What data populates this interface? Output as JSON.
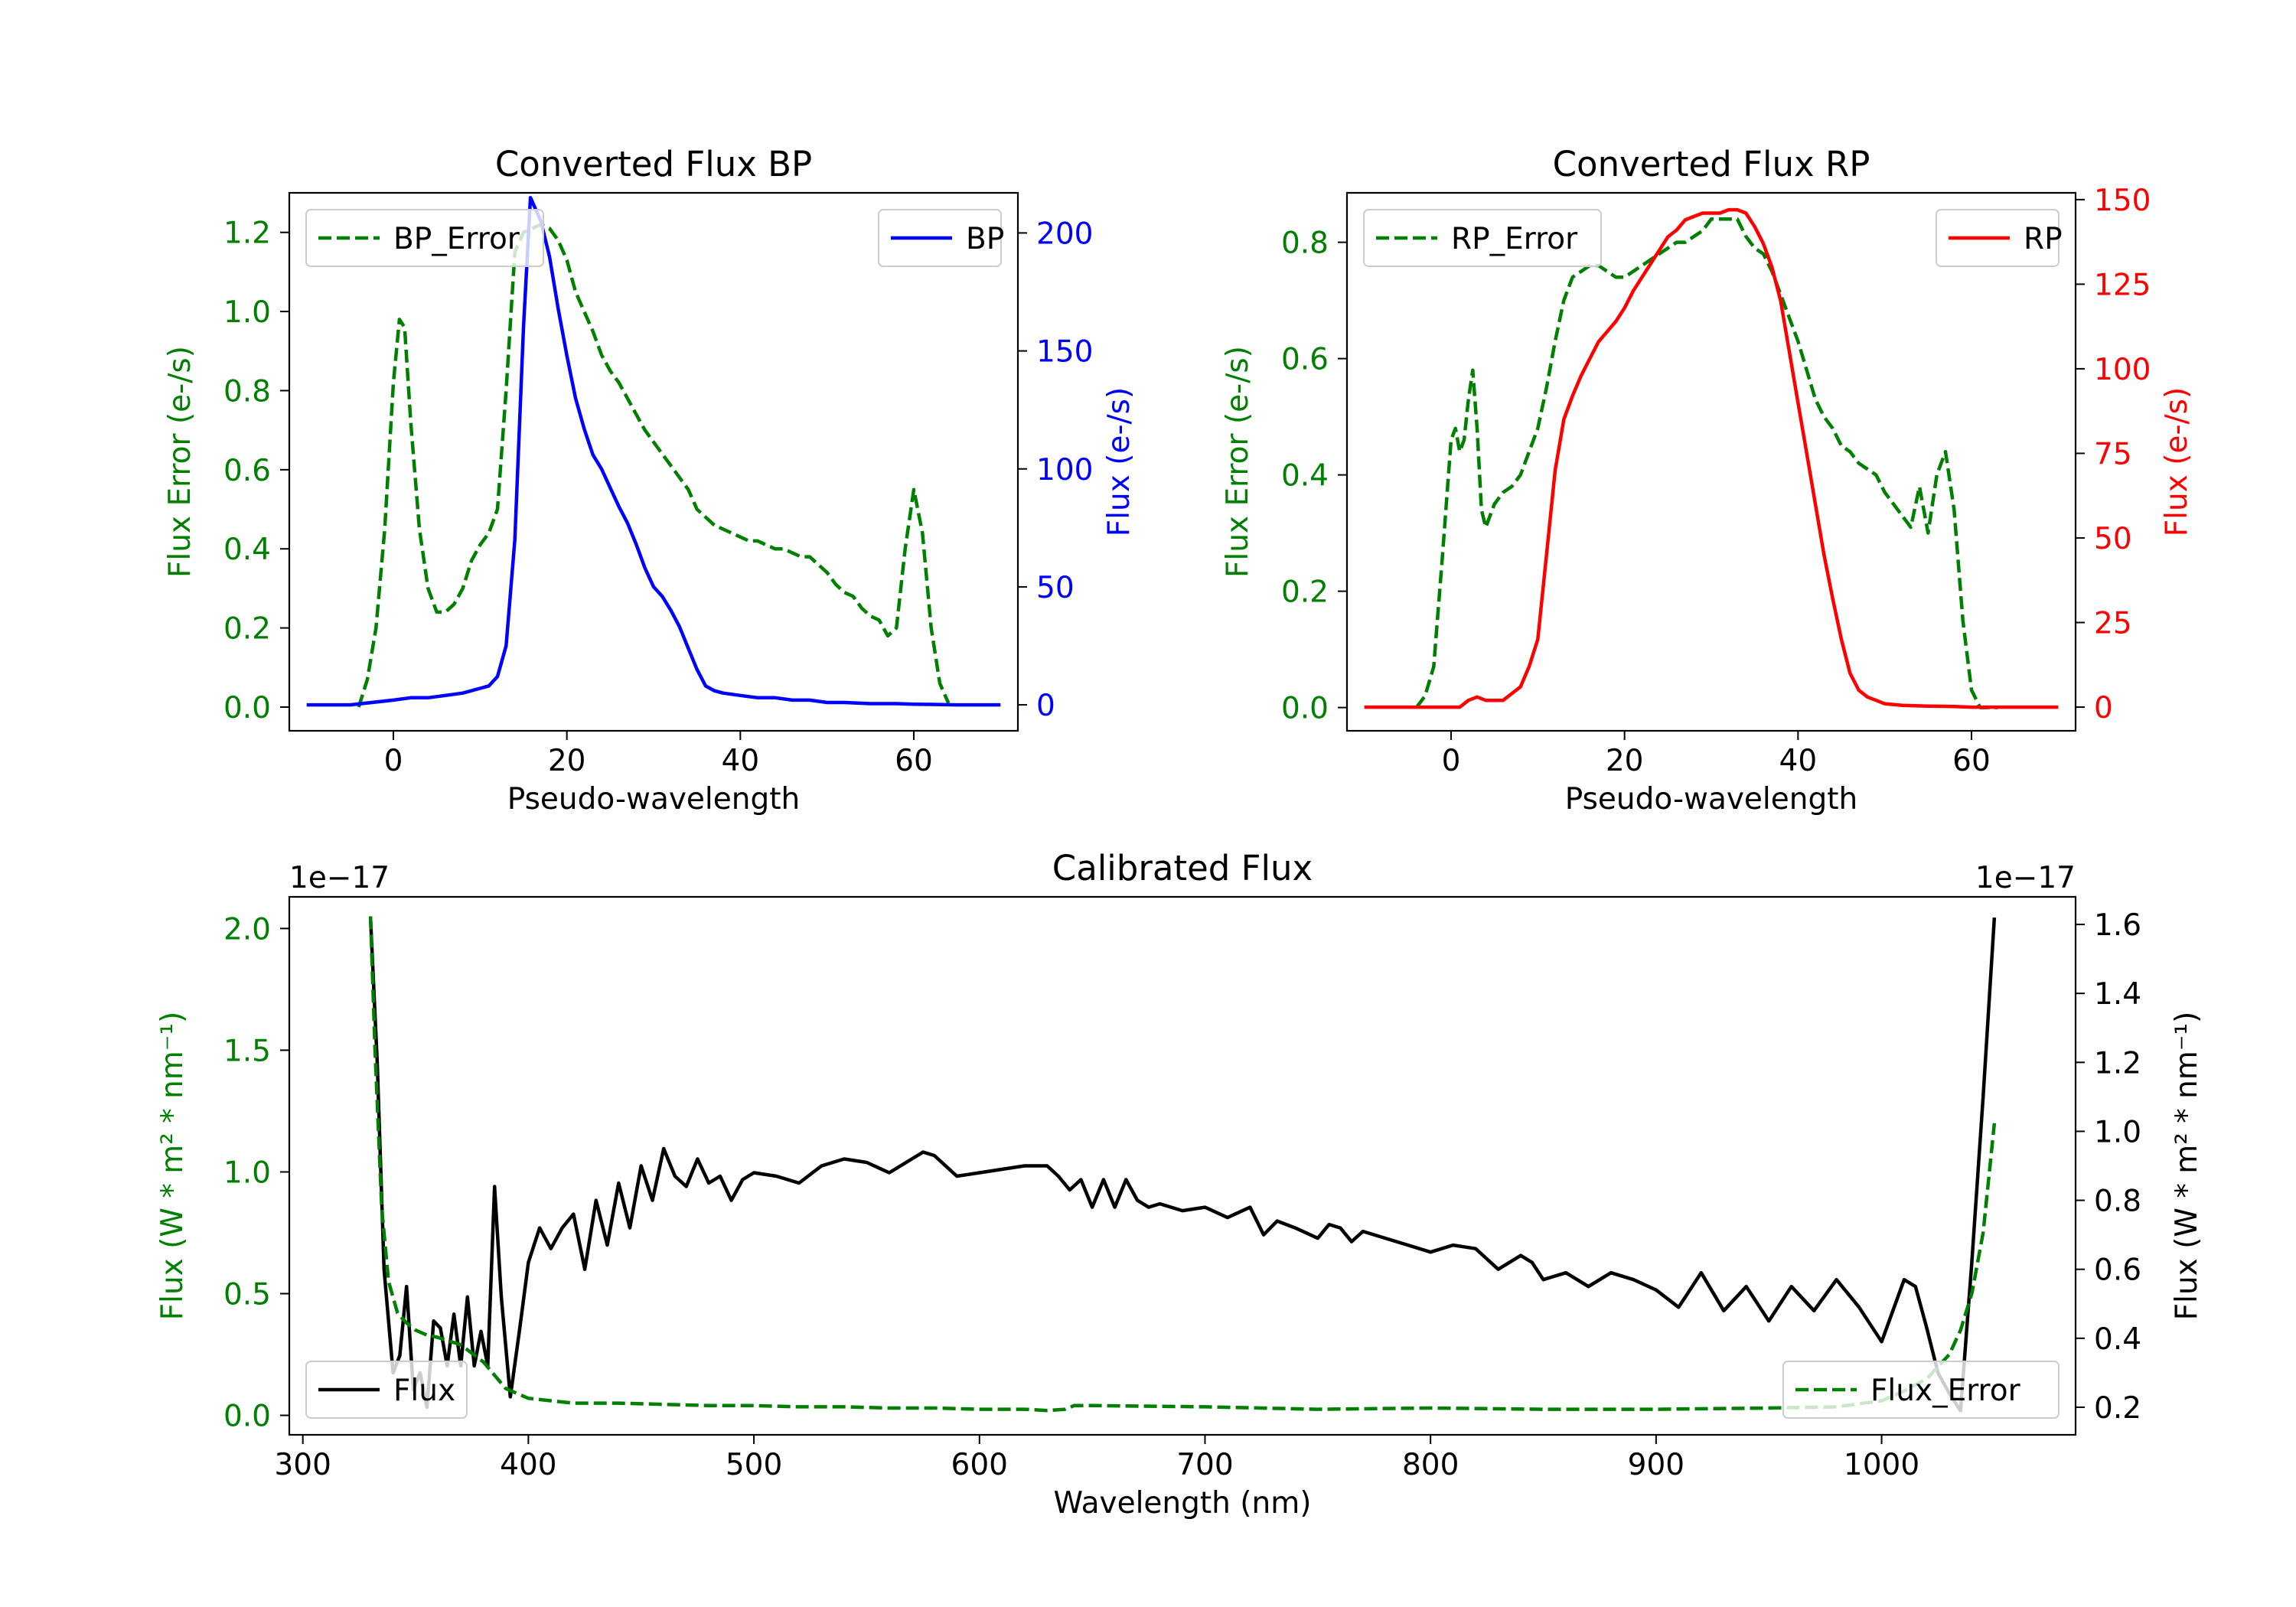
{
  "chart_data": [
    {
      "id": "bp",
      "type": "line",
      "title": "Converted Flux BP",
      "xlabel": "Pseudo-wavelength",
      "xlim": [
        -12,
        72
      ],
      "xticks": [
        0,
        20,
        40,
        60
      ],
      "left_axis": {
        "label": "Flux Error (e-/s)",
        "color": "#008000",
        "lim": [
          -0.06,
          1.3
        ],
        "ticks": [
          "0.0",
          "0.2",
          "0.4",
          "0.6",
          "0.8",
          "1.0",
          "1.2"
        ]
      },
      "right_axis": {
        "label": "Flux (e-/s)",
        "color": "#0000ff",
        "lim": [
          -11,
          217
        ],
        "ticks": [
          "0",
          "50",
          "100",
          "150",
          "200"
        ]
      },
      "series": [
        {
          "name": "BP_Error",
          "axis": "left",
          "color": "#008000",
          "dash": true,
          "x": [
            -4,
            -3,
            -2,
            -1,
            0,
            0.7,
            1.3,
            2,
            3,
            4,
            5,
            6,
            7,
            8,
            9,
            10,
            11,
            12,
            13,
            14,
            15,
            16,
            17,
            18,
            19,
            20,
            21,
            22,
            23,
            24,
            25,
            26,
            27,
            28,
            29,
            30,
            31,
            32,
            33,
            34,
            35,
            36,
            37,
            38,
            39,
            40,
            41,
            42,
            43,
            44,
            45,
            46,
            47,
            48,
            49,
            50,
            51,
            52,
            53,
            54,
            55,
            56,
            57,
            58,
            59,
            60,
            61,
            62,
            63,
            64
          ],
          "y": [
            0,
            0.07,
            0.2,
            0.45,
            0.82,
            0.98,
            0.96,
            0.72,
            0.45,
            0.3,
            0.24,
            0.24,
            0.26,
            0.3,
            0.37,
            0.41,
            0.44,
            0.5,
            0.8,
            1.15,
            1.2,
            1.21,
            1.22,
            1.21,
            1.18,
            1.13,
            1.05,
            1,
            0.95,
            0.89,
            0.85,
            0.82,
            0.78,
            0.74,
            0.7,
            0.67,
            0.64,
            0.61,
            0.58,
            0.55,
            0.5,
            0.48,
            0.46,
            0.45,
            0.44,
            0.43,
            0.42,
            0.42,
            0.41,
            0.4,
            0.4,
            0.39,
            0.38,
            0.38,
            0.36,
            0.34,
            0.31,
            0.29,
            0.28,
            0.25,
            0.23,
            0.22,
            0.18,
            0.2,
            0.4,
            0.55,
            0.44,
            0.2,
            0.06,
            0.01
          ]
        },
        {
          "name": "BP",
          "axis": "right",
          "color": "#0000ff",
          "dash": false,
          "x": [
            -10,
            -5,
            0,
            2,
            4,
            6,
            8,
            10,
            11,
            12,
            13,
            14,
            15,
            15.8,
            17,
            18,
            19,
            20,
            21,
            22,
            23,
            24,
            25,
            26,
            27,
            28,
            29,
            30,
            31,
            32,
            33,
            34,
            35,
            36,
            37,
            38,
            40,
            42,
            44,
            46,
            48,
            50,
            52,
            55,
            58,
            60,
            62,
            65,
            70
          ],
          "y": [
            0,
            0,
            2,
            3,
            3,
            4,
            5,
            7,
            8,
            12,
            25,
            70,
            160,
            215,
            205,
            190,
            168,
            148,
            130,
            117,
            106,
            100,
            92,
            84,
            77,
            68,
            58,
            50,
            46,
            40,
            33,
            24,
            15,
            8,
            6,
            5,
            4,
            3,
            3,
            2,
            2,
            1,
            1,
            0.5,
            0.5,
            0.3,
            0.2,
            0,
            0
          ]
        }
      ],
      "legend": [
        {
          "label": "BP_Error",
          "position": "upper-left"
        },
        {
          "label": "BP",
          "position": "upper-right"
        }
      ]
    },
    {
      "id": "rp",
      "type": "line",
      "title": "Converted Flux RP",
      "xlabel": "Pseudo-wavelength",
      "xlim": [
        -12,
        72
      ],
      "xticks": [
        0,
        20,
        40,
        60
      ],
      "left_axis": {
        "label": "Flux Error (e-/s)",
        "color": "#008000",
        "lim": [
          -0.04,
          0.885
        ],
        "ticks": [
          "0.0",
          "0.2",
          "0.4",
          "0.6",
          "0.8"
        ]
      },
      "right_axis": {
        "label": "Flux (e-/s)",
        "color": "#ff0000",
        "lim": [
          -7,
          152
        ],
        "ticks": [
          "0",
          "25",
          "50",
          "75",
          "100",
          "125",
          "150"
        ]
      },
      "series": [
        {
          "name": "RP_Error",
          "axis": "left",
          "color": "#008000",
          "dash": true,
          "x": [
            -4,
            -3,
            -2,
            -1,
            0,
            0.5,
            1,
            1.5,
            2,
            2.5,
            3,
            3.5,
            4,
            5,
            6,
            7,
            8,
            9,
            10,
            11,
            12,
            13,
            14,
            15,
            16,
            17,
            18,
            19,
            20,
            21,
            22,
            23,
            24,
            25,
            26,
            27,
            28,
            29,
            30,
            31,
            32,
            33,
            34,
            35,
            36,
            37,
            38,
            39,
            40,
            41,
            42,
            43,
            44,
            45,
            46,
            47,
            48,
            49,
            50,
            51,
            52,
            53,
            54,
            55,
            56,
            57,
            58,
            59,
            60,
            61,
            62,
            63
          ],
          "y": [
            0,
            0.02,
            0.07,
            0.26,
            0.46,
            0.48,
            0.44,
            0.46,
            0.53,
            0.58,
            0.48,
            0.34,
            0.31,
            0.35,
            0.37,
            0.38,
            0.4,
            0.44,
            0.48,
            0.55,
            0.63,
            0.7,
            0.74,
            0.75,
            0.76,
            0.76,
            0.75,
            0.74,
            0.74,
            0.75,
            0.76,
            0.77,
            0.78,
            0.79,
            0.8,
            0.8,
            0.81,
            0.82,
            0.84,
            0.84,
            0.84,
            0.84,
            0.81,
            0.79,
            0.78,
            0.75,
            0.71,
            0.67,
            0.63,
            0.58,
            0.53,
            0.5,
            0.48,
            0.45,
            0.44,
            0.42,
            0.41,
            0.4,
            0.37,
            0.35,
            0.33,
            0.31,
            0.38,
            0.3,
            0.4,
            0.44,
            0.34,
            0.15,
            0.03,
            0,
            0,
            0
          ]
        },
        {
          "name": "RP",
          "axis": "right",
          "color": "#ff0000",
          "dash": false,
          "x": [
            -10,
            -5,
            0,
            1,
            2,
            3,
            4,
            5,
            6,
            7,
            8,
            9,
            10,
            11,
            12,
            13,
            14,
            15,
            16,
            17,
            18,
            19,
            20,
            21,
            22,
            23,
            24,
            25,
            26,
            27,
            28,
            29,
            30,
            31,
            32,
            33,
            34,
            35,
            36,
            37,
            38,
            39,
            40,
            41,
            42,
            43,
            44,
            45,
            46,
            47,
            48,
            49,
            50,
            52,
            55,
            58,
            60,
            62,
            65,
            70
          ],
          "y": [
            0,
            0,
            0,
            0,
            2,
            3,
            2,
            2,
            2,
            4,
            6,
            12,
            20,
            45,
            70,
            85,
            92,
            98,
            103,
            108,
            111,
            114,
            118,
            123,
            127,
            131,
            135,
            139,
            141,
            144,
            145,
            146,
            146,
            146,
            147,
            147,
            146,
            142,
            137,
            130,
            120,
            105,
            90,
            75,
            60,
            45,
            32,
            20,
            10,
            5,
            3,
            2,
            1,
            0.5,
            0.3,
            0.2,
            0,
            0,
            0,
            0
          ]
        }
      ],
      "legend": [
        {
          "label": "RP_Error",
          "position": "upper-left"
        },
        {
          "label": "RP",
          "position": "upper-right"
        }
      ]
    },
    {
      "id": "cal",
      "type": "line",
      "title": "Calibrated Flux",
      "xlabel": "Wavelength (nm)",
      "xlim": [
        294,
        1086
      ],
      "xticks": [
        300,
        400,
        500,
        600,
        700,
        800,
        900,
        1000
      ],
      "left_axis": {
        "label": "Flux (W * m² * nm⁻¹)",
        "color": "#008000",
        "lim": [
          -0.08,
          2.13
        ],
        "ticks": [
          "0.0",
          "0.5",
          "1.0",
          "1.5",
          "2.0"
        ],
        "offset": "1e−17"
      },
      "right_axis": {
        "label": "Flux (W * m² * nm⁻¹)",
        "color": "#000000",
        "lim": [
          0.12,
          1.68
        ],
        "ticks": [
          "0.2",
          "0.4",
          "0.6",
          "0.8",
          "1.0",
          "1.2",
          "1.4",
          "1.6"
        ],
        "offset": "1e−17"
      },
      "series": [
        {
          "name": "Flux",
          "axis": "right",
          "color": "#000000",
          "dash": false,
          "x": [
            330,
            333,
            336,
            340,
            343,
            346,
            349,
            352,
            355,
            358,
            361,
            364,
            367,
            370,
            373,
            376,
            379,
            382,
            385,
            388,
            392,
            396,
            400,
            405,
            410,
            415,
            420,
            425,
            430,
            435,
            440,
            445,
            450,
            455,
            460,
            465,
            470,
            475,
            480,
            485,
            490,
            495,
            500,
            510,
            520,
            530,
            540,
            550,
            560,
            570,
            575,
            580,
            590,
            600,
            610,
            620,
            630,
            635,
            640,
            645,
            650,
            655,
            660,
            665,
            670,
            675,
            680,
            690,
            700,
            710,
            720,
            726,
            732,
            740,
            750,
            755,
            760,
            765,
            770,
            780,
            790,
            800,
            810,
            820,
            830,
            840,
            845,
            850,
            860,
            870,
            880,
            890,
            900,
            910,
            920,
            930,
            940,
            950,
            960,
            970,
            980,
            990,
            1000,
            1010,
            1015,
            1020,
            1025,
            1030,
            1035,
            1040,
            1045,
            1050
          ],
          "y": [
            1.62,
            1.2,
            0.6,
            0.3,
            0.35,
            0.55,
            0.25,
            0.3,
            0.2,
            0.45,
            0.43,
            0.32,
            0.47,
            0.32,
            0.52,
            0.32,
            0.42,
            0.32,
            0.84,
            0.52,
            0.23,
            0.42,
            0.62,
            0.72,
            0.66,
            0.72,
            0.76,
            0.6,
            0.8,
            0.67,
            0.85,
            0.72,
            0.9,
            0.8,
            0.95,
            0.87,
            0.84,
            0.92,
            0.85,
            0.87,
            0.8,
            0.86,
            0.88,
            0.87,
            0.85,
            0.9,
            0.92,
            0.91,
            0.88,
            0.92,
            0.94,
            0.93,
            0.87,
            0.88,
            0.89,
            0.9,
            0.9,
            0.87,
            0.83,
            0.86,
            0.78,
            0.86,
            0.78,
            0.86,
            0.8,
            0.78,
            0.79,
            0.77,
            0.78,
            0.75,
            0.78,
            0.7,
            0.74,
            0.72,
            0.69,
            0.73,
            0.72,
            0.68,
            0.71,
            0.69,
            0.67,
            0.65,
            0.67,
            0.66,
            0.6,
            0.64,
            0.62,
            0.57,
            0.59,
            0.55,
            0.59,
            0.57,
            0.54,
            0.49,
            0.59,
            0.48,
            0.55,
            0.45,
            0.55,
            0.48,
            0.57,
            0.49,
            0.39,
            0.57,
            0.55,
            0.43,
            0.3,
            0.24,
            0.19,
            0.62,
            1.1,
            1.62
          ]
        },
        {
          "name": "Flux_Error",
          "axis": "left",
          "color": "#008000",
          "dash": true,
          "x": [
            330,
            332,
            335,
            338,
            342,
            346,
            350,
            355,
            360,
            370,
            380,
            390,
            400,
            410,
            420,
            440,
            460,
            480,
            500,
            520,
            540,
            560,
            580,
            600,
            620,
            630,
            638,
            642,
            650,
            700,
            750,
            800,
            850,
            900,
            950,
            980,
            1000,
            1010,
            1020,
            1030,
            1035,
            1040,
            1045,
            1050
          ],
          "y": [
            2.05,
            1.5,
            0.85,
            0.55,
            0.42,
            0.38,
            0.35,
            0.33,
            0.32,
            0.29,
            0.22,
            0.11,
            0.07,
            0.06,
            0.05,
            0.05,
            0.045,
            0.04,
            0.04,
            0.035,
            0.035,
            0.03,
            0.03,
            0.025,
            0.025,
            0.02,
            0.025,
            0.04,
            0.04,
            0.035,
            0.025,
            0.03,
            0.025,
            0.025,
            0.03,
            0.035,
            0.06,
            0.1,
            0.15,
            0.25,
            0.35,
            0.5,
            0.75,
            1.2
          ]
        }
      ],
      "legend": [
        {
          "label": "Flux",
          "position": "lower-left"
        },
        {
          "label": "Flux_Error",
          "position": "lower-right"
        }
      ]
    }
  ]
}
